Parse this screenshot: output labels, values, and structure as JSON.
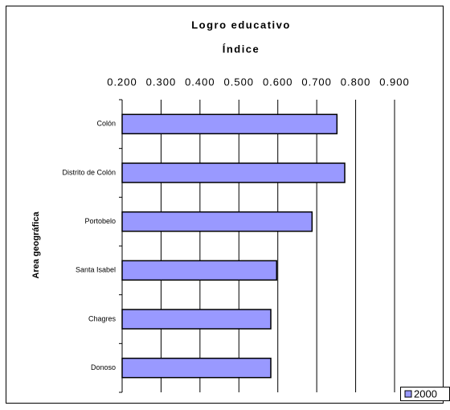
{
  "chart_data": {
    "type": "bar",
    "orientation": "horizontal",
    "title": "Logro educativo",
    "x_label": "Índice",
    "y_label": "Area geográfica",
    "categories": [
      "Colón",
      "Distrito de Colón",
      "Portobelo",
      "Santa Isabel",
      "Chagres",
      "Donoso"
    ],
    "series": [
      {
        "name": "2000",
        "color": "#9999ff",
        "values": [
          0.752,
          0.772,
          0.688,
          0.597,
          0.582,
          0.582
        ]
      }
    ],
    "xlim": [
      0.2,
      0.9
    ],
    "xticks": [
      {
        "value": 0.2,
        "label": "0.200"
      },
      {
        "value": 0.3,
        "label": "0.300"
      },
      {
        "value": 0.4,
        "label": "0.400"
      },
      {
        "value": 0.5,
        "label": "0.500"
      },
      {
        "value": 0.6,
        "label": "0.600"
      },
      {
        "value": 0.7,
        "label": "0.700"
      },
      {
        "value": 0.8,
        "label": "0.800"
      },
      {
        "value": 0.9,
        "label": "0.900"
      }
    ],
    "grid": true,
    "legend": "bottom-right"
  }
}
